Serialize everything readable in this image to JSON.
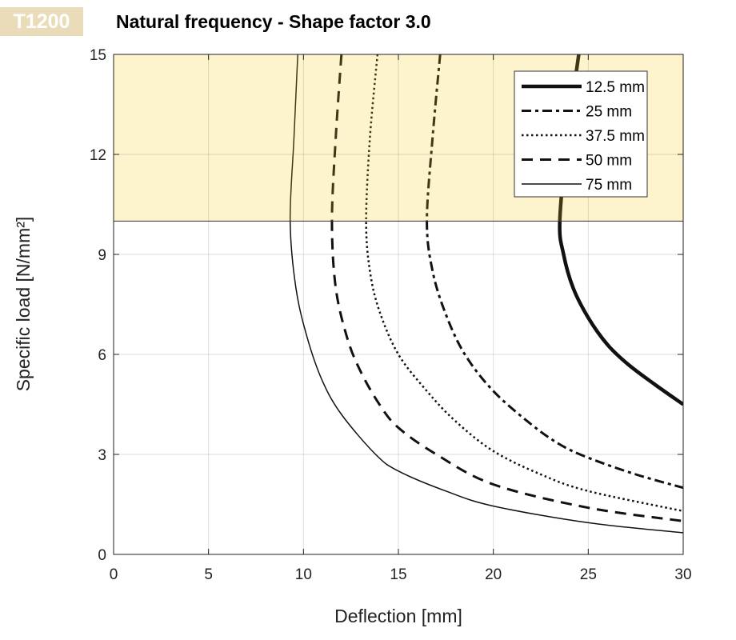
{
  "badge": "T1200",
  "chart_data": {
    "type": "line",
    "title": "Natural frequency - Shape factor 3.0",
    "xlabel": "Deflection  [mm]",
    "ylabel": "Specific load [N/mm²]",
    "xlim": [
      0,
      30
    ],
    "ylim": [
      0,
      15
    ],
    "xticks": [
      0,
      5,
      10,
      15,
      20,
      25,
      30
    ],
    "yticks": [
      0,
      3,
      6,
      9,
      12,
      15
    ],
    "grid": true,
    "shaded_region": {
      "y_from": 10,
      "y_to": 15,
      "color": "#fdf3cc"
    },
    "legend_position": "top-right",
    "series": [
      {
        "name": "12.5 mm",
        "style": "thick-solid",
        "points": [
          [
            24.5,
            15
          ],
          [
            23.9,
            12.5
          ],
          [
            23.5,
            10
          ],
          [
            23.7,
            9
          ],
          [
            24.2,
            8
          ],
          [
            25,
            7.1
          ],
          [
            26,
            6.3
          ],
          [
            27.1,
            5.7
          ],
          [
            28.5,
            5.1
          ],
          [
            30,
            4.5
          ]
        ]
      },
      {
        "name": "25 mm",
        "style": "dash-dot",
        "points": [
          [
            17.2,
            15
          ],
          [
            16.8,
            12.5
          ],
          [
            16.5,
            10
          ],
          [
            16.8,
            8.5
          ],
          [
            17.5,
            7.2
          ],
          [
            18.5,
            6
          ],
          [
            20,
            4.9
          ],
          [
            22,
            3.9
          ],
          [
            23.5,
            3.3
          ],
          [
            25,
            2.9
          ],
          [
            27.5,
            2.4
          ],
          [
            30,
            2.0
          ]
        ]
      },
      {
        "name": "37.5 mm",
        "style": "dotted",
        "points": [
          [
            13.9,
            15
          ],
          [
            13.5,
            12.5
          ],
          [
            13.3,
            10
          ],
          [
            13.5,
            8.5
          ],
          [
            14,
            7.3
          ],
          [
            15,
            6
          ],
          [
            16.5,
            4.9
          ],
          [
            18,
            4
          ],
          [
            20,
            3.1
          ],
          [
            22.5,
            2.4
          ],
          [
            25,
            1.9
          ],
          [
            30,
            1.3
          ]
        ]
      },
      {
        "name": "50 mm",
        "style": "dashed",
        "points": [
          [
            12,
            15
          ],
          [
            11.7,
            12.5
          ],
          [
            11.5,
            10
          ],
          [
            11.7,
            8
          ],
          [
            12.3,
            6.5
          ],
          [
            13,
            5.5
          ],
          [
            14,
            4.5
          ],
          [
            15,
            3.8
          ],
          [
            17,
            3
          ],
          [
            20,
            2.1
          ],
          [
            25,
            1.4
          ],
          [
            30,
            1.0
          ]
        ]
      },
      {
        "name": "75 mm",
        "style": "thin-solid",
        "points": [
          [
            9.7,
            15
          ],
          [
            9.5,
            12.5
          ],
          [
            9.3,
            10
          ],
          [
            9.6,
            8
          ],
          [
            10.2,
            6.5
          ],
          [
            11,
            5.2
          ],
          [
            12,
            4.2
          ],
          [
            13.8,
            3
          ],
          [
            15,
            2.5
          ],
          [
            17.5,
            1.9
          ],
          [
            20,
            1.45
          ],
          [
            25,
            0.95
          ],
          [
            30,
            0.65
          ]
        ]
      }
    ]
  }
}
